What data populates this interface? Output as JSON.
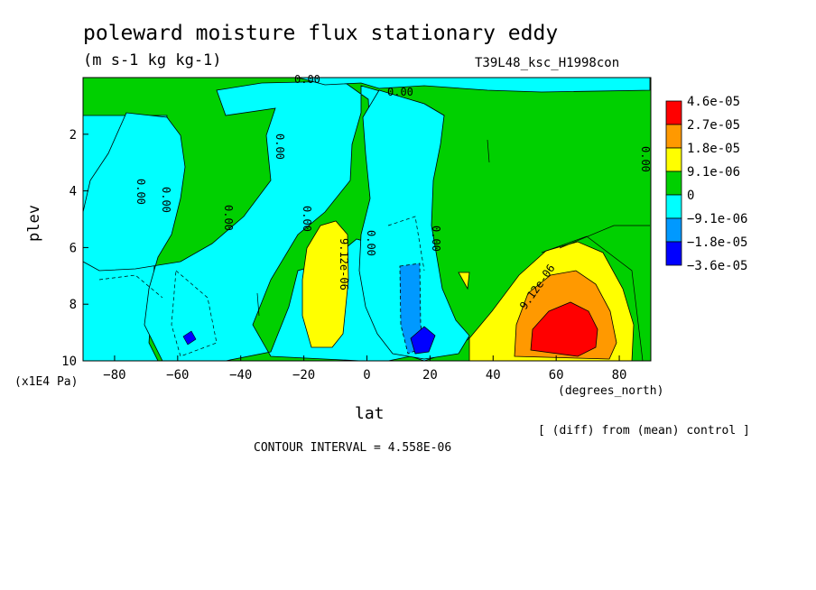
{
  "title": "poleward moisture flux stationary eddy",
  "units": "(m s-1 kg kg-1)",
  "run_id": "T39L48_ksc_H1998con",
  "note": "[ (diff) from (mean) control ]",
  "contour_interval": "CONTOUR INTERVAL = 4.558E-06",
  "chart_data": {
    "type": "heatmap",
    "title": "poleward moisture flux stationary eddy",
    "xlabel": "lat",
    "x_unit": "(degrees_north)",
    "ylabel": "plev",
    "y_unit": "(x1E4 Pa)",
    "xlim": [
      -90,
      90
    ],
    "ylim": [
      10,
      0
    ],
    "x_ticks": [
      -80,
      -60,
      -40,
      -20,
      0,
      20,
      40,
      60,
      80
    ],
    "x_tick_labels": [
      "−80",
      "−60",
      "−40",
      "−20",
      "0",
      "20",
      "40",
      "60",
      "80"
    ],
    "y_ticks": [
      2,
      4,
      6,
      8,
      10
    ],
    "y_tick_labels": [
      "2",
      "4",
      "6",
      "8",
      "10"
    ],
    "colorbar": {
      "labels": [
        "4.6e-05",
        "2.7e-05",
        "1.8e-05",
        "9.1e-06",
        "0",
        "−9.1e-06",
        "−1.8e-05",
        "−3.6e-05"
      ],
      "colors": [
        "#ff0000",
        "#ff9900",
        "#ffff00",
        "#00d000",
        "#00ffff",
        "#0099ff",
        "#0000ff"
      ]
    },
    "contour_labels": [
      "0.00",
      "0.00",
      "0.00",
      "0.00",
      "0.00",
      "0.00",
      "0.00",
      "0.00",
      "0.00",
      "0.00",
      "9.12e-06",
      "9.12e-06"
    ],
    "features": [
      {
        "kind": "maximum",
        "lat": 62,
        "plev": 9.0,
        "value_class": "4.6e-05"
      },
      {
        "kind": "positive",
        "lat": -12,
        "plev": 8.0,
        "value_class": "9.1e-06"
      },
      {
        "kind": "minimum",
        "lat": 17,
        "plev": 9.3,
        "value_class": "-1.8e-05"
      },
      {
        "kind": "minimum",
        "lat": -56,
        "plev": 9.2,
        "value_class": "-1.8e-05"
      }
    ]
  }
}
